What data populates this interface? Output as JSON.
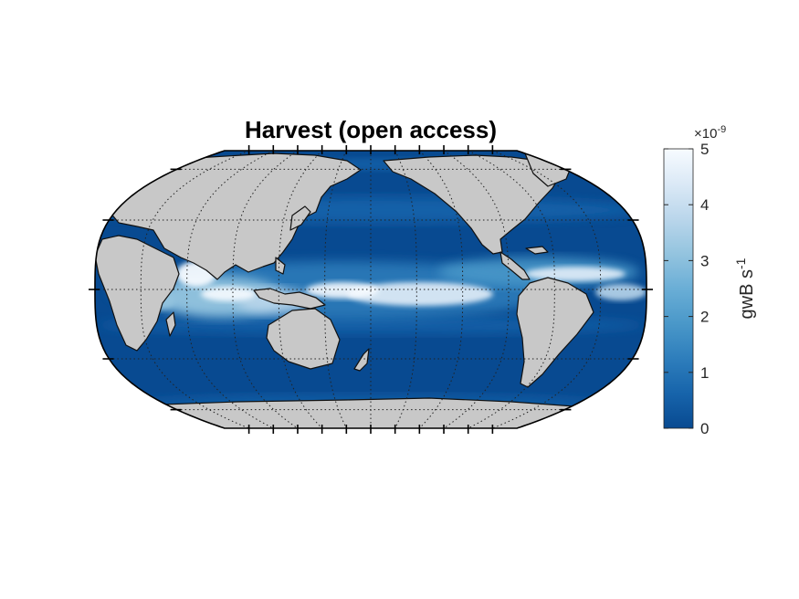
{
  "title": "Harvest (open access)",
  "colorbar": {
    "exponent_prefix": "×10",
    "exponent_power": "-9",
    "unit_base": "gwB s",
    "unit_power": "-1",
    "range": [
      0,
      5
    ],
    "ticks": [
      "0",
      "1",
      "2",
      "3",
      "4",
      "5"
    ],
    "colormap": [
      "#084a91",
      "#1764ab",
      "#2e7ebc",
      "#4a98c9",
      "#6aaed6",
      "#94c4df",
      "#bad6eb",
      "#dbe9f6",
      "#f7fbff"
    ]
  },
  "map": {
    "projection": "Robinson",
    "central_meridian": "180°",
    "land_color": "#c8c8c8",
    "ocean_base_color": "#084a91",
    "graticule": "dotted",
    "coastlines": "black"
  }
}
